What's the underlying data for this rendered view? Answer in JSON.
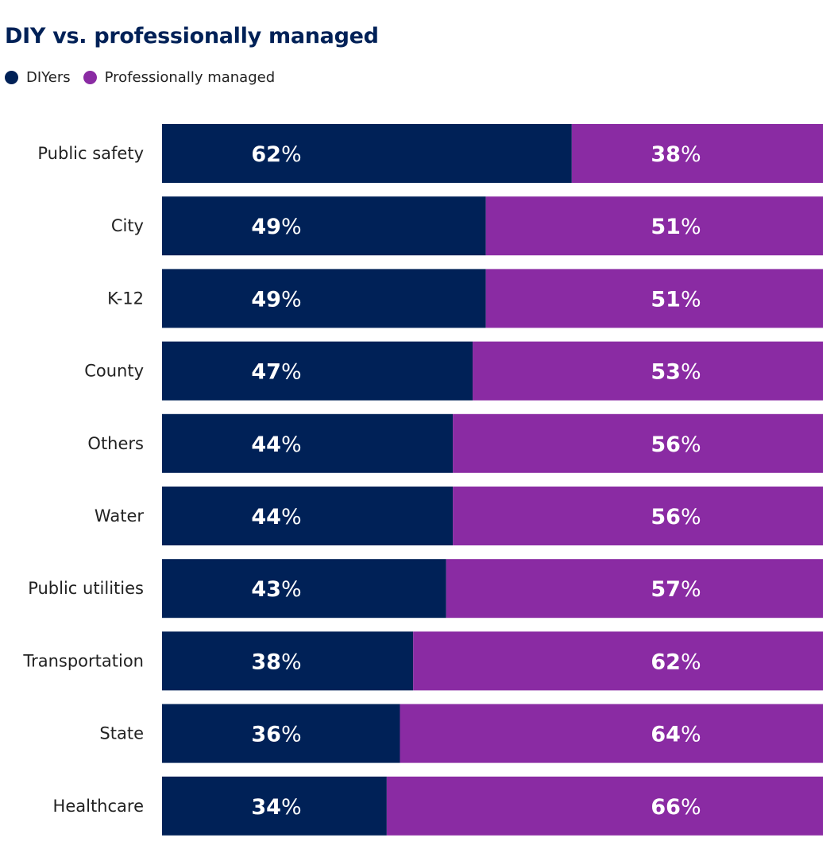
{
  "chart_data": {
    "type": "bar",
    "stacked": true,
    "orientation": "horizontal",
    "title": "DIY vs. professionally managed",
    "xlabel": "",
    "ylabel": "",
    "xlim": [
      0,
      100
    ],
    "grid": false,
    "legend_position": "top-left",
    "categories": [
      "Public safety",
      "City",
      "K-12",
      "County",
      "Others",
      "Water",
      "Public utilities",
      "Transportation",
      "State",
      "Healthcare"
    ],
    "series": [
      {
        "name": "DIYers",
        "color": "#002157",
        "values": [
          62,
          49,
          49,
          47,
          44,
          44,
          43,
          38,
          36,
          34
        ]
      },
      {
        "name": "Professionally managed",
        "color": "#8A2BA3",
        "values": [
          38,
          51,
          51,
          53,
          56,
          56,
          57,
          62,
          64,
          66
        ]
      }
    ],
    "value_suffix": "%"
  }
}
